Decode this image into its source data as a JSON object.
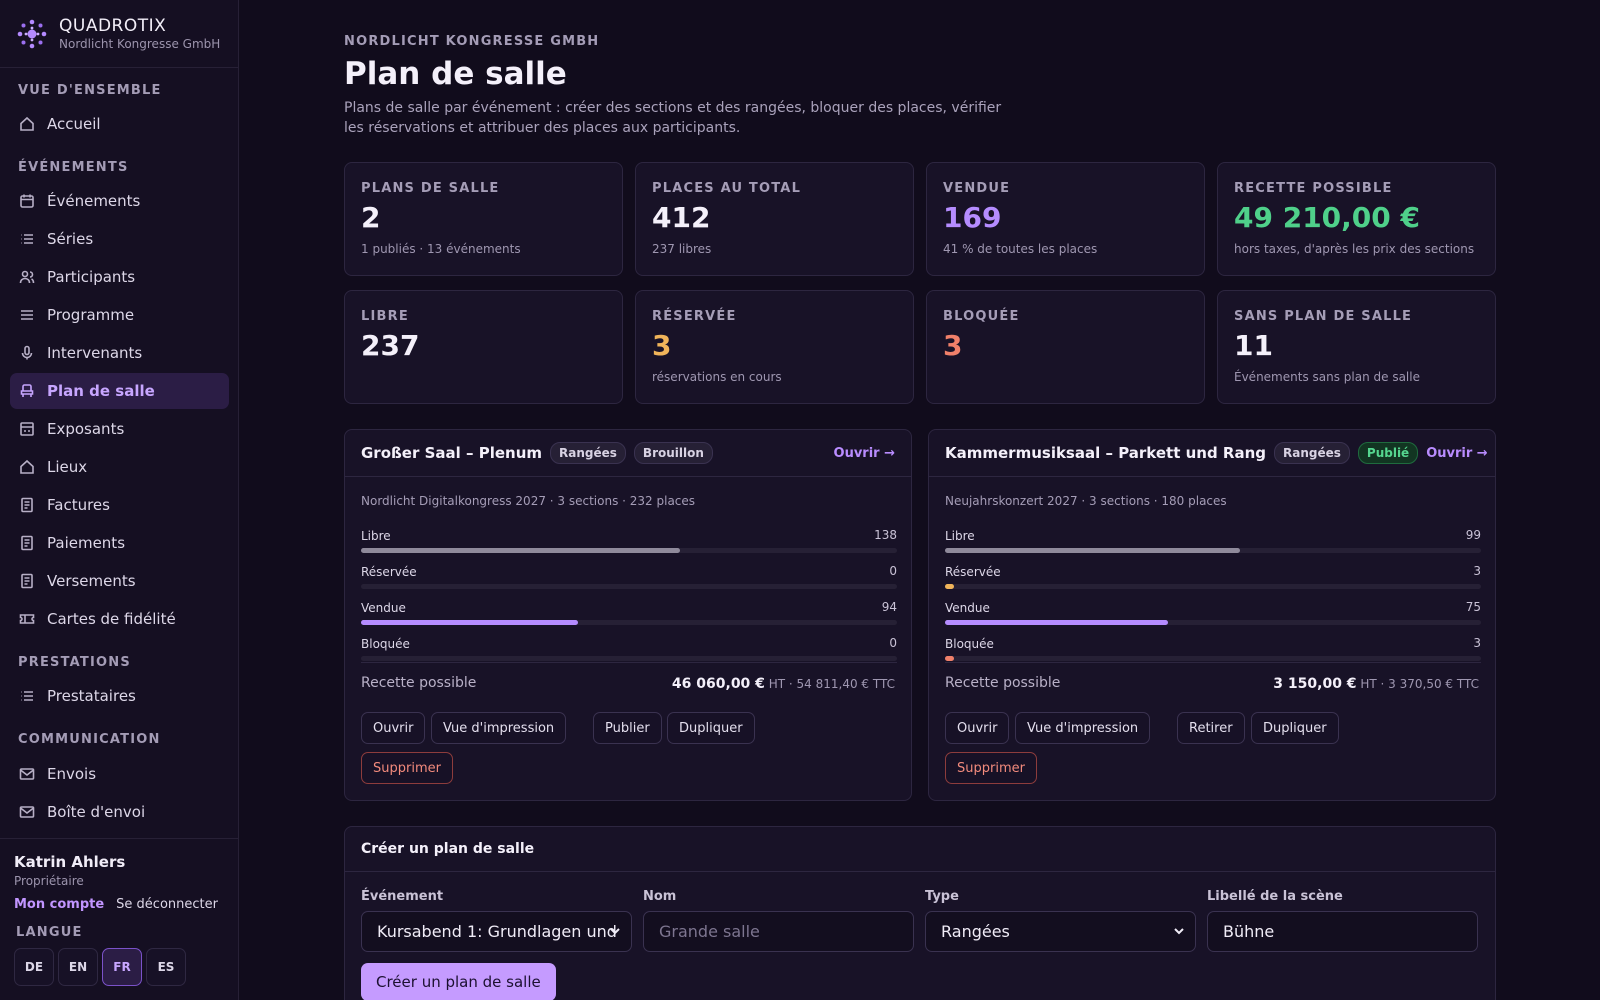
{
  "brand": {
    "name": "QUADROTIX",
    "org": "Nordlicht Kongresse GmbH"
  },
  "nav": {
    "sections": {
      "overview": "VUE D'ENSEMBLE",
      "events": "ÉVÉNEMENTS",
      "services": "PRESTATIONS",
      "communication": "COMMUNICATION"
    },
    "items": {
      "home": "Accueil",
      "events": "Événements",
      "series": "Séries",
      "participants": "Participants",
      "program": "Programme",
      "speakers": "Intervenants",
      "seating": "Plan de salle",
      "exhibitors": "Exposants",
      "venues": "Lieux",
      "invoices": "Factures",
      "payments": "Paiements",
      "payouts": "Versements",
      "loyalty": "Cartes de fidélité",
      "providers": "Prestataires",
      "mailings": "Envois",
      "outbox": "Boîte d'envoi"
    }
  },
  "user": {
    "name": "Katrin Ahlers",
    "role": "Propriétaire",
    "account": "Mon compte",
    "logout": "Se déconnecter"
  },
  "language": {
    "label": "LANGUE",
    "options": [
      "DE",
      "EN",
      "FR",
      "ES"
    ],
    "selected": "FR"
  },
  "page": {
    "org": "NORDLICHT KONGRESSE GMBH",
    "title": "Plan de salle",
    "description": "Plans de salle par événement : créer des sections et des rangées, bloquer des places, vérifier les réservations et attribuer des places aux participants."
  },
  "stats": [
    {
      "label": "PLANS DE SALLE",
      "value": "2",
      "sub": "1 publiés · 13 événements",
      "color": "#f4f0fa"
    },
    {
      "label": "PLACES AU TOTAL",
      "value": "412",
      "sub": "237 libres",
      "color": "#f4f0fa"
    },
    {
      "label": "VENDUE",
      "value": "169",
      "sub": "41 % de toutes les places",
      "color": "#b58cff"
    },
    {
      "label": "RECETTE POSSIBLE",
      "value": "49 210,00 €",
      "sub": "hors taxes, d'après les prix des sections",
      "color": "#4fd08a"
    },
    {
      "label": "LIBRE",
      "value": "237",
      "sub": "",
      "color": "#f4f0fa"
    },
    {
      "label": "RÉSERVÉE",
      "value": "3",
      "sub": "réservations en cours",
      "color": "#f0b45a"
    },
    {
      "label": "BLOQUÉE",
      "value": "3",
      "sub": "",
      "color": "#f0806a"
    },
    {
      "label": "SANS PLAN DE SALLE",
      "value": "11",
      "sub": "Événements sans plan de salle",
      "color": "#f4f0fa"
    }
  ],
  "plans": [
    {
      "title": "Großer Saal – Plenum",
      "badge_type": "Rangées",
      "badge_status": "Brouillon",
      "open": "Ouvrir →",
      "meta": "Nordlicht Digitalkongress 2027 · 3 sections · 232 places",
      "bars": [
        {
          "label": "Libre",
          "value": "138",
          "fraction": 0.5948,
          "color": "#8f8a9b"
        },
        {
          "label": "Réservée",
          "value": "0",
          "fraction": 0,
          "color": "#f0b45a"
        },
        {
          "label": "Vendue",
          "value": "94",
          "fraction": 0.4052,
          "color": "#b58cff"
        },
        {
          "label": "Bloquée",
          "value": "0",
          "fraction": 0,
          "color": "#f0806a"
        }
      ],
      "revenue_label": "Recette possible",
      "revenue_ht": "46 060,00 €",
      "revenue_rest": " HT · 54 811,40 € TTC",
      "actions": [
        "Ouvrir",
        "Vue d'impression",
        "Publier",
        "Dupliquer"
      ],
      "delete": "Supprimer"
    },
    {
      "title": "Kammermusiksaal – Parkett und Rang",
      "badge_type": "Rangées",
      "badge_status": "Publié",
      "open": "Ouvrir →",
      "meta": "Neujahrskonzert 2027 · 3 sections · 180 places",
      "bars": [
        {
          "label": "Libre",
          "value": "99",
          "fraction": 0.55,
          "color": "#8f8a9b"
        },
        {
          "label": "Réservée",
          "value": "3",
          "fraction": 0.0167,
          "color": "#f0b45a"
        },
        {
          "label": "Vendue",
          "value": "75",
          "fraction": 0.4167,
          "color": "#b58cff"
        },
        {
          "label": "Bloquée",
          "value": "3",
          "fraction": 0.0167,
          "color": "#f0806a"
        }
      ],
      "revenue_label": "Recette possible",
      "revenue_ht": "3 150,00 €",
      "revenue_rest": " HT · 3 370,50 € TTC",
      "actions": [
        "Ouvrir",
        "Vue d'impression",
        "Retirer",
        "Dupliquer"
      ],
      "delete": "Supprimer"
    }
  ],
  "create_form": {
    "title": "Créer un plan de salle",
    "event_label": "Événement",
    "event_value": "Kursabend 1: Grundlagen und",
    "name_label": "Nom",
    "name_placeholder": "Grande salle",
    "type_label": "Type",
    "type_value": "Rangées",
    "stage_label": "Libellé de la scène",
    "stage_value": "Bühne",
    "submit": "Créer un plan de salle"
  }
}
